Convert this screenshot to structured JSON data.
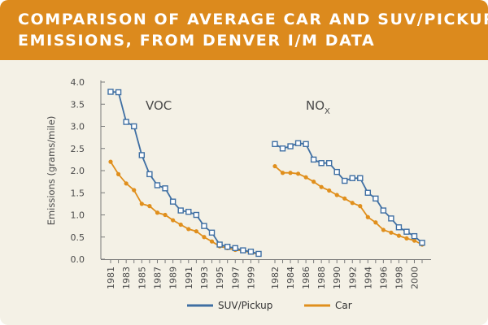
{
  "colors": {
    "banner": "#dc8a1d",
    "suv_series": "#3f6fa3",
    "car_series": "#e08f1c",
    "panel": "#f4f1e6"
  },
  "chart_data": {
    "type": "line",
    "title": "COMPARISON OF AVERAGE CAR AND SUV/PICKUP EMISSIONS, FROM DENVER I/M DATA",
    "title_lines": [
      "COMPARISON OF AVERAGE CAR AND SUV/PICKUP",
      "EMISSIONS, FROM DENVER I/M DATA"
    ],
    "ylabel": "Emissions (grams/mile)",
    "xlabel": "",
    "ylim": [
      0,
      4.0
    ],
    "yticks": [
      "0.0",
      "0.5",
      "1.0",
      "1.5",
      "2.0",
      "2.5",
      "3.0",
      "3.5",
      "4.0"
    ],
    "grid": false,
    "legend": {
      "position": "bottom",
      "entries": [
        "SUV/Pickup",
        "Car"
      ]
    },
    "annotations": {
      "voc": "VOC",
      "nox_main": "NO",
      "nox_sub": "X"
    },
    "panels": [
      {
        "name": "VOC",
        "x": [
          1981,
          1982,
          1983,
          1984,
          1985,
          1986,
          1987,
          1988,
          1989,
          1990,
          1991,
          1992,
          1993,
          1994,
          1995,
          1996,
          1997,
          1998,
          1999,
          2000
        ],
        "xticks": [
          "1981",
          "1983",
          "1985",
          "1987",
          "1989",
          "1991",
          "1993",
          "1995",
          "1997",
          "1999"
        ],
        "series": [
          {
            "name": "SUV/Pickup",
            "values": [
              3.78,
              3.77,
              3.1,
              3.0,
              2.35,
              1.92,
              1.67,
              1.6,
              1.3,
              1.1,
              1.07,
              1.0,
              0.75,
              0.6,
              0.33,
              0.28,
              0.25,
              0.2,
              0.17,
              0.12
            ]
          },
          {
            "name": "Car",
            "values": [
              2.2,
              1.92,
              1.71,
              1.56,
              1.25,
              1.2,
              1.05,
              1.0,
              0.88,
              0.78,
              0.68,
              0.63,
              0.5,
              0.4,
              0.29,
              0.25,
              0.21,
              0.19,
              0.15,
              0.11
            ]
          }
        ]
      },
      {
        "name": "NOx",
        "x": [
          1981,
          1982,
          1983,
          1984,
          1985,
          1986,
          1987,
          1988,
          1989,
          1990,
          1991,
          1992,
          1993,
          1994,
          1995,
          1996,
          1997,
          1998,
          1999,
          2000
        ],
        "xticks": [
          "1982",
          "1984",
          "1986",
          "1988",
          "1990",
          "1992",
          "1994",
          "1996",
          "1998",
          "2000"
        ],
        "series": [
          {
            "name": "SUV/Pickup",
            "values": [
              2.6,
              2.5,
              2.55,
              2.62,
              2.6,
              2.25,
              2.17,
              2.17,
              1.97,
              1.77,
              1.83,
              1.83,
              1.5,
              1.37,
              1.1,
              0.92,
              0.72,
              0.62,
              0.52,
              0.37
            ]
          },
          {
            "name": "Car",
            "values": [
              2.1,
              1.95,
              1.95,
              1.93,
              1.85,
              1.75,
              1.63,
              1.55,
              1.45,
              1.37,
              1.27,
              1.2,
              0.95,
              0.83,
              0.66,
              0.6,
              0.53,
              0.47,
              0.42,
              0.33
            ]
          }
        ]
      }
    ]
  }
}
